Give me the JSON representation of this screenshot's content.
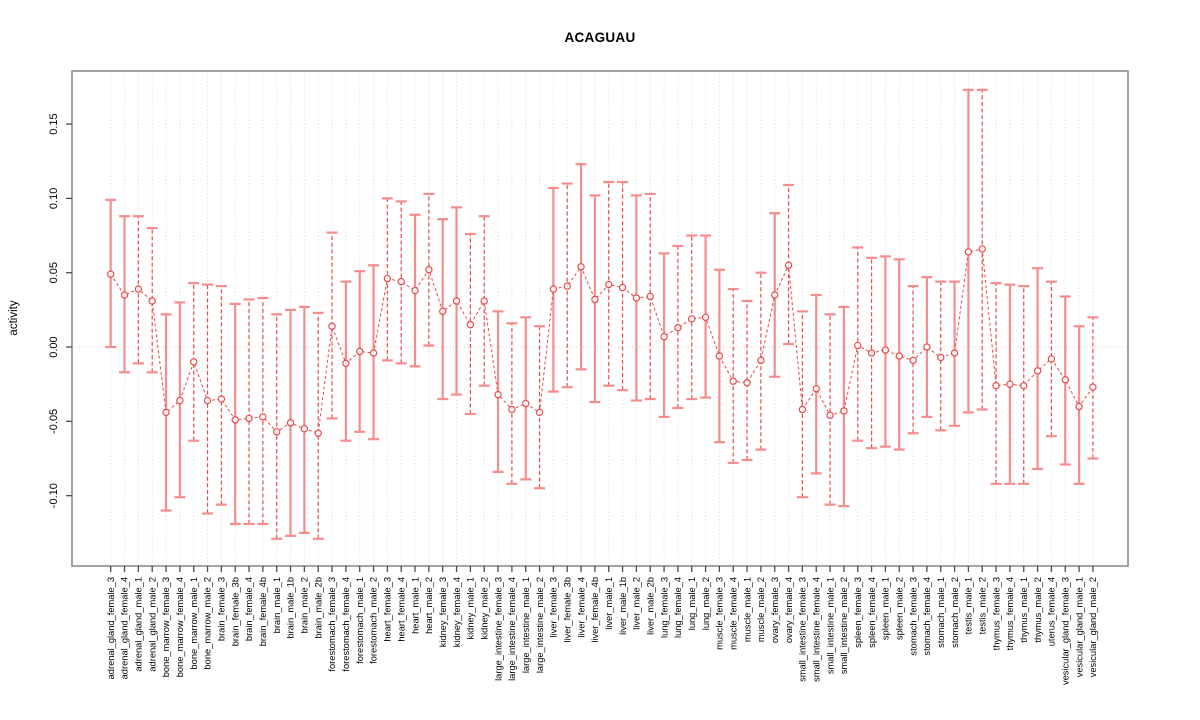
{
  "figure": {
    "background": "#ffffff"
  },
  "chart_data": {
    "type": "scatter-errorbar",
    "title": "ACAGUAU",
    "xlabel": "",
    "ylabel": "activity",
    "ylim": [
      -0.1473,
      0.1857
    ],
    "yticks": [
      0.15,
      0.1,
      0.05,
      0.0,
      -0.05,
      -0.1
    ],
    "ytick_labels": [
      "0.15",
      "0.10",
      "0.05",
      "0.00",
      "-0.05",
      "-0.10"
    ],
    "zero_line": 0.0,
    "grid": "vertical-dotted",
    "legend": "none",
    "marker": "open-circle",
    "connector": "dashed-line",
    "colors": {
      "solid_bar": "#f58d8d",
      "dashed_bar": "#e64c4c",
      "cap": "#f58d8d",
      "marker": "#e64c4c",
      "connector": "#e64c4c",
      "zero_line": "#f3c1c1",
      "gridline": "#d9d9d9",
      "frame": "#8c8c8c",
      "tick": "#4d4d4d",
      "text": "#000000"
    },
    "points": [
      {
        "label": "adrenal_gland_female_3",
        "mean": 0.049,
        "lo": 0.0,
        "hi": 0.099,
        "style": "solid"
      },
      {
        "label": "adrenal_gland_female_4",
        "mean": 0.035,
        "lo": -0.017,
        "hi": 0.088,
        "style": "solid"
      },
      {
        "label": "adrenal_gland_male_1",
        "mean": 0.039,
        "lo": -0.011,
        "hi": 0.088,
        "style": "dashed"
      },
      {
        "label": "adrenal_gland_male_2",
        "mean": 0.031,
        "lo": -0.017,
        "hi": 0.08,
        "style": "dashed"
      },
      {
        "label": "bone_marrow_female_3",
        "mean": -0.044,
        "lo": -0.11,
        "hi": 0.022,
        "style": "solid"
      },
      {
        "label": "bone_marrow_female_4",
        "mean": -0.036,
        "lo": -0.101,
        "hi": 0.03,
        "style": "solid"
      },
      {
        "label": "bone_marrow_male_1",
        "mean": -0.01,
        "lo": -0.063,
        "hi": 0.043,
        "style": "dashed"
      },
      {
        "label": "bone_marrow_male_2",
        "mean": -0.036,
        "lo": -0.112,
        "hi": 0.042,
        "style": "dashed"
      },
      {
        "label": "brain_female_3",
        "mean": -0.035,
        "lo": -0.106,
        "hi": 0.041,
        "style": "dashed"
      },
      {
        "label": "brain_female_3b",
        "mean": -0.049,
        "lo": -0.119,
        "hi": 0.029,
        "style": "solid"
      },
      {
        "label": "brain_female_4",
        "mean": -0.048,
        "lo": -0.119,
        "hi": 0.032,
        "style": "dashed"
      },
      {
        "label": "brain_female_4b",
        "mean": -0.047,
        "lo": -0.119,
        "hi": 0.033,
        "style": "dashed"
      },
      {
        "label": "brain_male_1",
        "mean": -0.057,
        "lo": -0.129,
        "hi": 0.022,
        "style": "dashed"
      },
      {
        "label": "brain_male_1b",
        "mean": -0.051,
        "lo": -0.127,
        "hi": 0.025,
        "style": "solid"
      },
      {
        "label": "brain_male_2",
        "mean": -0.055,
        "lo": -0.125,
        "hi": 0.027,
        "style": "solid"
      },
      {
        "label": "brain_male_2b",
        "mean": -0.058,
        "lo": -0.129,
        "hi": 0.023,
        "style": "dashed"
      },
      {
        "label": "forestomach_female_3",
        "mean": 0.014,
        "lo": -0.048,
        "hi": 0.077,
        "style": "dashed"
      },
      {
        "label": "forestomach_female_4",
        "mean": -0.011,
        "lo": -0.063,
        "hi": 0.044,
        "style": "solid"
      },
      {
        "label": "forestomach_male_1",
        "mean": -0.003,
        "lo": -0.057,
        "hi": 0.051,
        "style": "solid"
      },
      {
        "label": "forestomach_male_2",
        "mean": -0.004,
        "lo": -0.062,
        "hi": 0.055,
        "style": "solid"
      },
      {
        "label": "heart_female_3",
        "mean": 0.046,
        "lo": -0.009,
        "hi": 0.1,
        "style": "dashed"
      },
      {
        "label": "heart_female_4",
        "mean": 0.044,
        "lo": -0.011,
        "hi": 0.098,
        "style": "dashed"
      },
      {
        "label": "heart_male_1",
        "mean": 0.038,
        "lo": -0.013,
        "hi": 0.089,
        "style": "solid"
      },
      {
        "label": "heart_male_2",
        "mean": 0.052,
        "lo": 0.001,
        "hi": 0.103,
        "style": "dashed"
      },
      {
        "label": "kidney_female_3",
        "mean": 0.024,
        "lo": -0.035,
        "hi": 0.086,
        "style": "solid"
      },
      {
        "label": "kidney_female_4",
        "mean": 0.031,
        "lo": -0.032,
        "hi": 0.094,
        "style": "solid"
      },
      {
        "label": "kidney_male_1",
        "mean": 0.015,
        "lo": -0.045,
        "hi": 0.076,
        "style": "dashed"
      },
      {
        "label": "kidney_male_2",
        "mean": 0.031,
        "lo": -0.026,
        "hi": 0.088,
        "style": "dashed"
      },
      {
        "label": "large_intestine_female_3",
        "mean": -0.032,
        "lo": -0.084,
        "hi": 0.024,
        "style": "solid"
      },
      {
        "label": "large_intestine_female_4",
        "mean": -0.042,
        "lo": -0.092,
        "hi": 0.016,
        "style": "dashed"
      },
      {
        "label": "large_intestine_male_1",
        "mean": -0.038,
        "lo": -0.089,
        "hi": 0.02,
        "style": "solid"
      },
      {
        "label": "large_intestine_male_2",
        "mean": -0.044,
        "lo": -0.095,
        "hi": 0.014,
        "style": "dashed"
      },
      {
        "label": "liver_female_3",
        "mean": 0.039,
        "lo": -0.03,
        "hi": 0.107,
        "style": "solid"
      },
      {
        "label": "liver_female_3b",
        "mean": 0.041,
        "lo": -0.027,
        "hi": 0.11,
        "style": "dashed"
      },
      {
        "label": "liver_female_4",
        "mean": 0.054,
        "lo": -0.015,
        "hi": 0.123,
        "style": "solid"
      },
      {
        "label": "liver_female_4b",
        "mean": 0.032,
        "lo": -0.037,
        "hi": 0.102,
        "style": "solid"
      },
      {
        "label": "liver_male_1",
        "mean": 0.042,
        "lo": -0.026,
        "hi": 0.111,
        "style": "dashed"
      },
      {
        "label": "liver_male_1b",
        "mean": 0.04,
        "lo": -0.029,
        "hi": 0.111,
        "style": "dashed"
      },
      {
        "label": "liver_male_2",
        "mean": 0.033,
        "lo": -0.036,
        "hi": 0.102,
        "style": "solid"
      },
      {
        "label": "liver_male_2b",
        "mean": 0.034,
        "lo": -0.035,
        "hi": 0.103,
        "style": "dashed"
      },
      {
        "label": "lung_female_3",
        "mean": 0.007,
        "lo": -0.047,
        "hi": 0.063,
        "style": "solid"
      },
      {
        "label": "lung_female_4",
        "mean": 0.013,
        "lo": -0.041,
        "hi": 0.068,
        "style": "dashed"
      },
      {
        "label": "lung_male_1",
        "mean": 0.019,
        "lo": -0.035,
        "hi": 0.075,
        "style": "dashed"
      },
      {
        "label": "lung_male_2",
        "mean": 0.02,
        "lo": -0.034,
        "hi": 0.075,
        "style": "solid"
      },
      {
        "label": "muscle_female_3",
        "mean": -0.006,
        "lo": -0.064,
        "hi": 0.052,
        "style": "solid"
      },
      {
        "label": "muscle_female_4",
        "mean": -0.023,
        "lo": -0.078,
        "hi": 0.039,
        "style": "dashed"
      },
      {
        "label": "muscle_male_1",
        "mean": -0.024,
        "lo": -0.076,
        "hi": 0.031,
        "style": "dashed"
      },
      {
        "label": "muscle_male_2",
        "mean": -0.009,
        "lo": -0.069,
        "hi": 0.05,
        "style": "dashed"
      },
      {
        "label": "ovary_female_3",
        "mean": 0.035,
        "lo": -0.02,
        "hi": 0.09,
        "style": "solid"
      },
      {
        "label": "ovary_female_4",
        "mean": 0.055,
        "lo": 0.002,
        "hi": 0.109,
        "style": "dashed"
      },
      {
        "label": "small_intestine_female_3",
        "mean": -0.042,
        "lo": -0.101,
        "hi": 0.024,
        "style": "dashed"
      },
      {
        "label": "small_intestine_female_4",
        "mean": -0.028,
        "lo": -0.085,
        "hi": 0.035,
        "style": "solid"
      },
      {
        "label": "small_intestine_male_1",
        "mean": -0.046,
        "lo": -0.106,
        "hi": 0.022,
        "style": "dashed"
      },
      {
        "label": "small_intestine_male_2",
        "mean": -0.043,
        "lo": -0.107,
        "hi": 0.027,
        "style": "solid"
      },
      {
        "label": "spleen_female_3",
        "mean": 0.001,
        "lo": -0.063,
        "hi": 0.067,
        "style": "dashed"
      },
      {
        "label": "spleen_female_4",
        "mean": -0.004,
        "lo": -0.068,
        "hi": 0.06,
        "style": "dashed"
      },
      {
        "label": "spleen_male_1",
        "mean": -0.002,
        "lo": -0.067,
        "hi": 0.061,
        "style": "solid"
      },
      {
        "label": "spleen_male_2",
        "mean": -0.006,
        "lo": -0.069,
        "hi": 0.059,
        "style": "solid"
      },
      {
        "label": "stomach_female_3",
        "mean": -0.009,
        "lo": -0.058,
        "hi": 0.041,
        "style": "dashed"
      },
      {
        "label": "stomach_female_4",
        "mean": 0.0,
        "lo": -0.047,
        "hi": 0.047,
        "style": "solid"
      },
      {
        "label": "stomach_male_1",
        "mean": -0.007,
        "lo": -0.056,
        "hi": 0.044,
        "style": "dashed"
      },
      {
        "label": "stomach_male_2",
        "mean": -0.004,
        "lo": -0.053,
        "hi": 0.044,
        "style": "solid"
      },
      {
        "label": "testis_male_1",
        "mean": 0.064,
        "lo": -0.044,
        "hi": 0.173,
        "style": "solid"
      },
      {
        "label": "testis_male_2",
        "mean": 0.066,
        "lo": -0.042,
        "hi": 0.173,
        "style": "dashed"
      },
      {
        "label": "thymus_female_3",
        "mean": -0.026,
        "lo": -0.092,
        "hi": 0.043,
        "style": "dashed"
      },
      {
        "label": "thymus_female_4",
        "mean": -0.025,
        "lo": -0.092,
        "hi": 0.042,
        "style": "solid"
      },
      {
        "label": "thymus_male_1",
        "mean": -0.026,
        "lo": -0.092,
        "hi": 0.041,
        "style": "dashed"
      },
      {
        "label": "thymus_male_2",
        "mean": -0.016,
        "lo": -0.082,
        "hi": 0.053,
        "style": "solid"
      },
      {
        "label": "uterus_female_4",
        "mean": -0.008,
        "lo": -0.06,
        "hi": 0.044,
        "style": "dashed"
      },
      {
        "label": "vesicular_gland_female_3",
        "mean": -0.022,
        "lo": -0.079,
        "hi": 0.034,
        "style": "solid"
      },
      {
        "label": "vesicular_gland_male_1",
        "mean": -0.04,
        "lo": -0.092,
        "hi": 0.014,
        "style": "solid"
      },
      {
        "label": "vesicular_gland_male_2",
        "mean": -0.027,
        "lo": -0.075,
        "hi": 0.02,
        "style": "dashed"
      }
    ]
  }
}
